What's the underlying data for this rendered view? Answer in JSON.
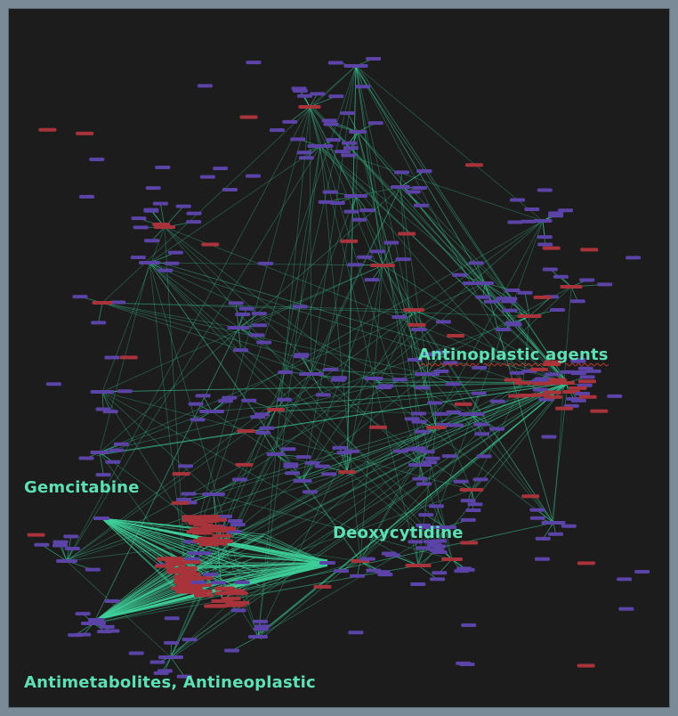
{
  "labels": {
    "antinoplastic": "Antinoplastic agents",
    "gemcitabine": "Gemcitabine",
    "deoxycytidine": "Deoxycytidine",
    "antimetabolites": "Antimetabolites, Antineoplastic"
  },
  "colors": {
    "background": "#1c1c1c",
    "frame": "#7a8a96",
    "edge": "#3ecf9a",
    "node_purple": "#5b43a8",
    "node_red": "#a8333a",
    "label": "#5ee0b4"
  }
}
